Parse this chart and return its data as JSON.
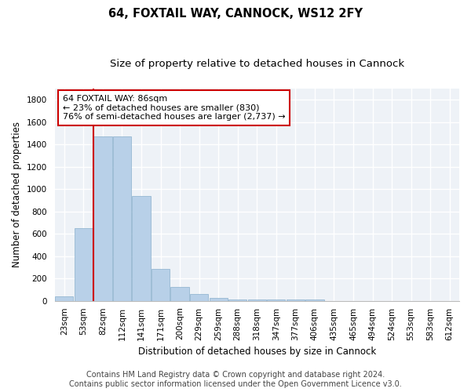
{
  "title": "64, FOXTAIL WAY, CANNOCK, WS12 2FY",
  "subtitle": "Size of property relative to detached houses in Cannock",
  "xlabel": "Distribution of detached houses by size in Cannock",
  "ylabel": "Number of detached properties",
  "categories": [
    "23sqm",
    "53sqm",
    "82sqm",
    "112sqm",
    "141sqm",
    "171sqm",
    "200sqm",
    "229sqm",
    "259sqm",
    "288sqm",
    "318sqm",
    "347sqm",
    "377sqm",
    "406sqm",
    "435sqm",
    "465sqm",
    "494sqm",
    "524sqm",
    "553sqm",
    "583sqm",
    "612sqm"
  ],
  "values": [
    40,
    650,
    1470,
    1470,
    940,
    290,
    125,
    65,
    25,
    15,
    10,
    10,
    10,
    15,
    0,
    0,
    0,
    0,
    0,
    0,
    0
  ],
  "bar_color": "#b8d0e8",
  "bar_edge_color": "#8ab0cc",
  "vline_color": "#cc0000",
  "annotation_line1": "64 FOXTAIL WAY: 86sqm",
  "annotation_line2": "← 23% of detached houses are smaller (830)",
  "annotation_line3": "76% of semi-detached houses are larger (2,737) →",
  "ylim": [
    0,
    1900
  ],
  "yticks": [
    0,
    200,
    400,
    600,
    800,
    1000,
    1200,
    1400,
    1600,
    1800
  ],
  "background_color": "#eef2f7",
  "footer_line1": "Contains HM Land Registry data © Crown copyright and database right 2024.",
  "footer_line2": "Contains public sector information licensed under the Open Government Licence v3.0.",
  "title_fontsize": 10.5,
  "subtitle_fontsize": 9.5,
  "axis_label_fontsize": 8.5,
  "tick_fontsize": 7.5,
  "annotation_fontsize": 8,
  "footer_fontsize": 7
}
